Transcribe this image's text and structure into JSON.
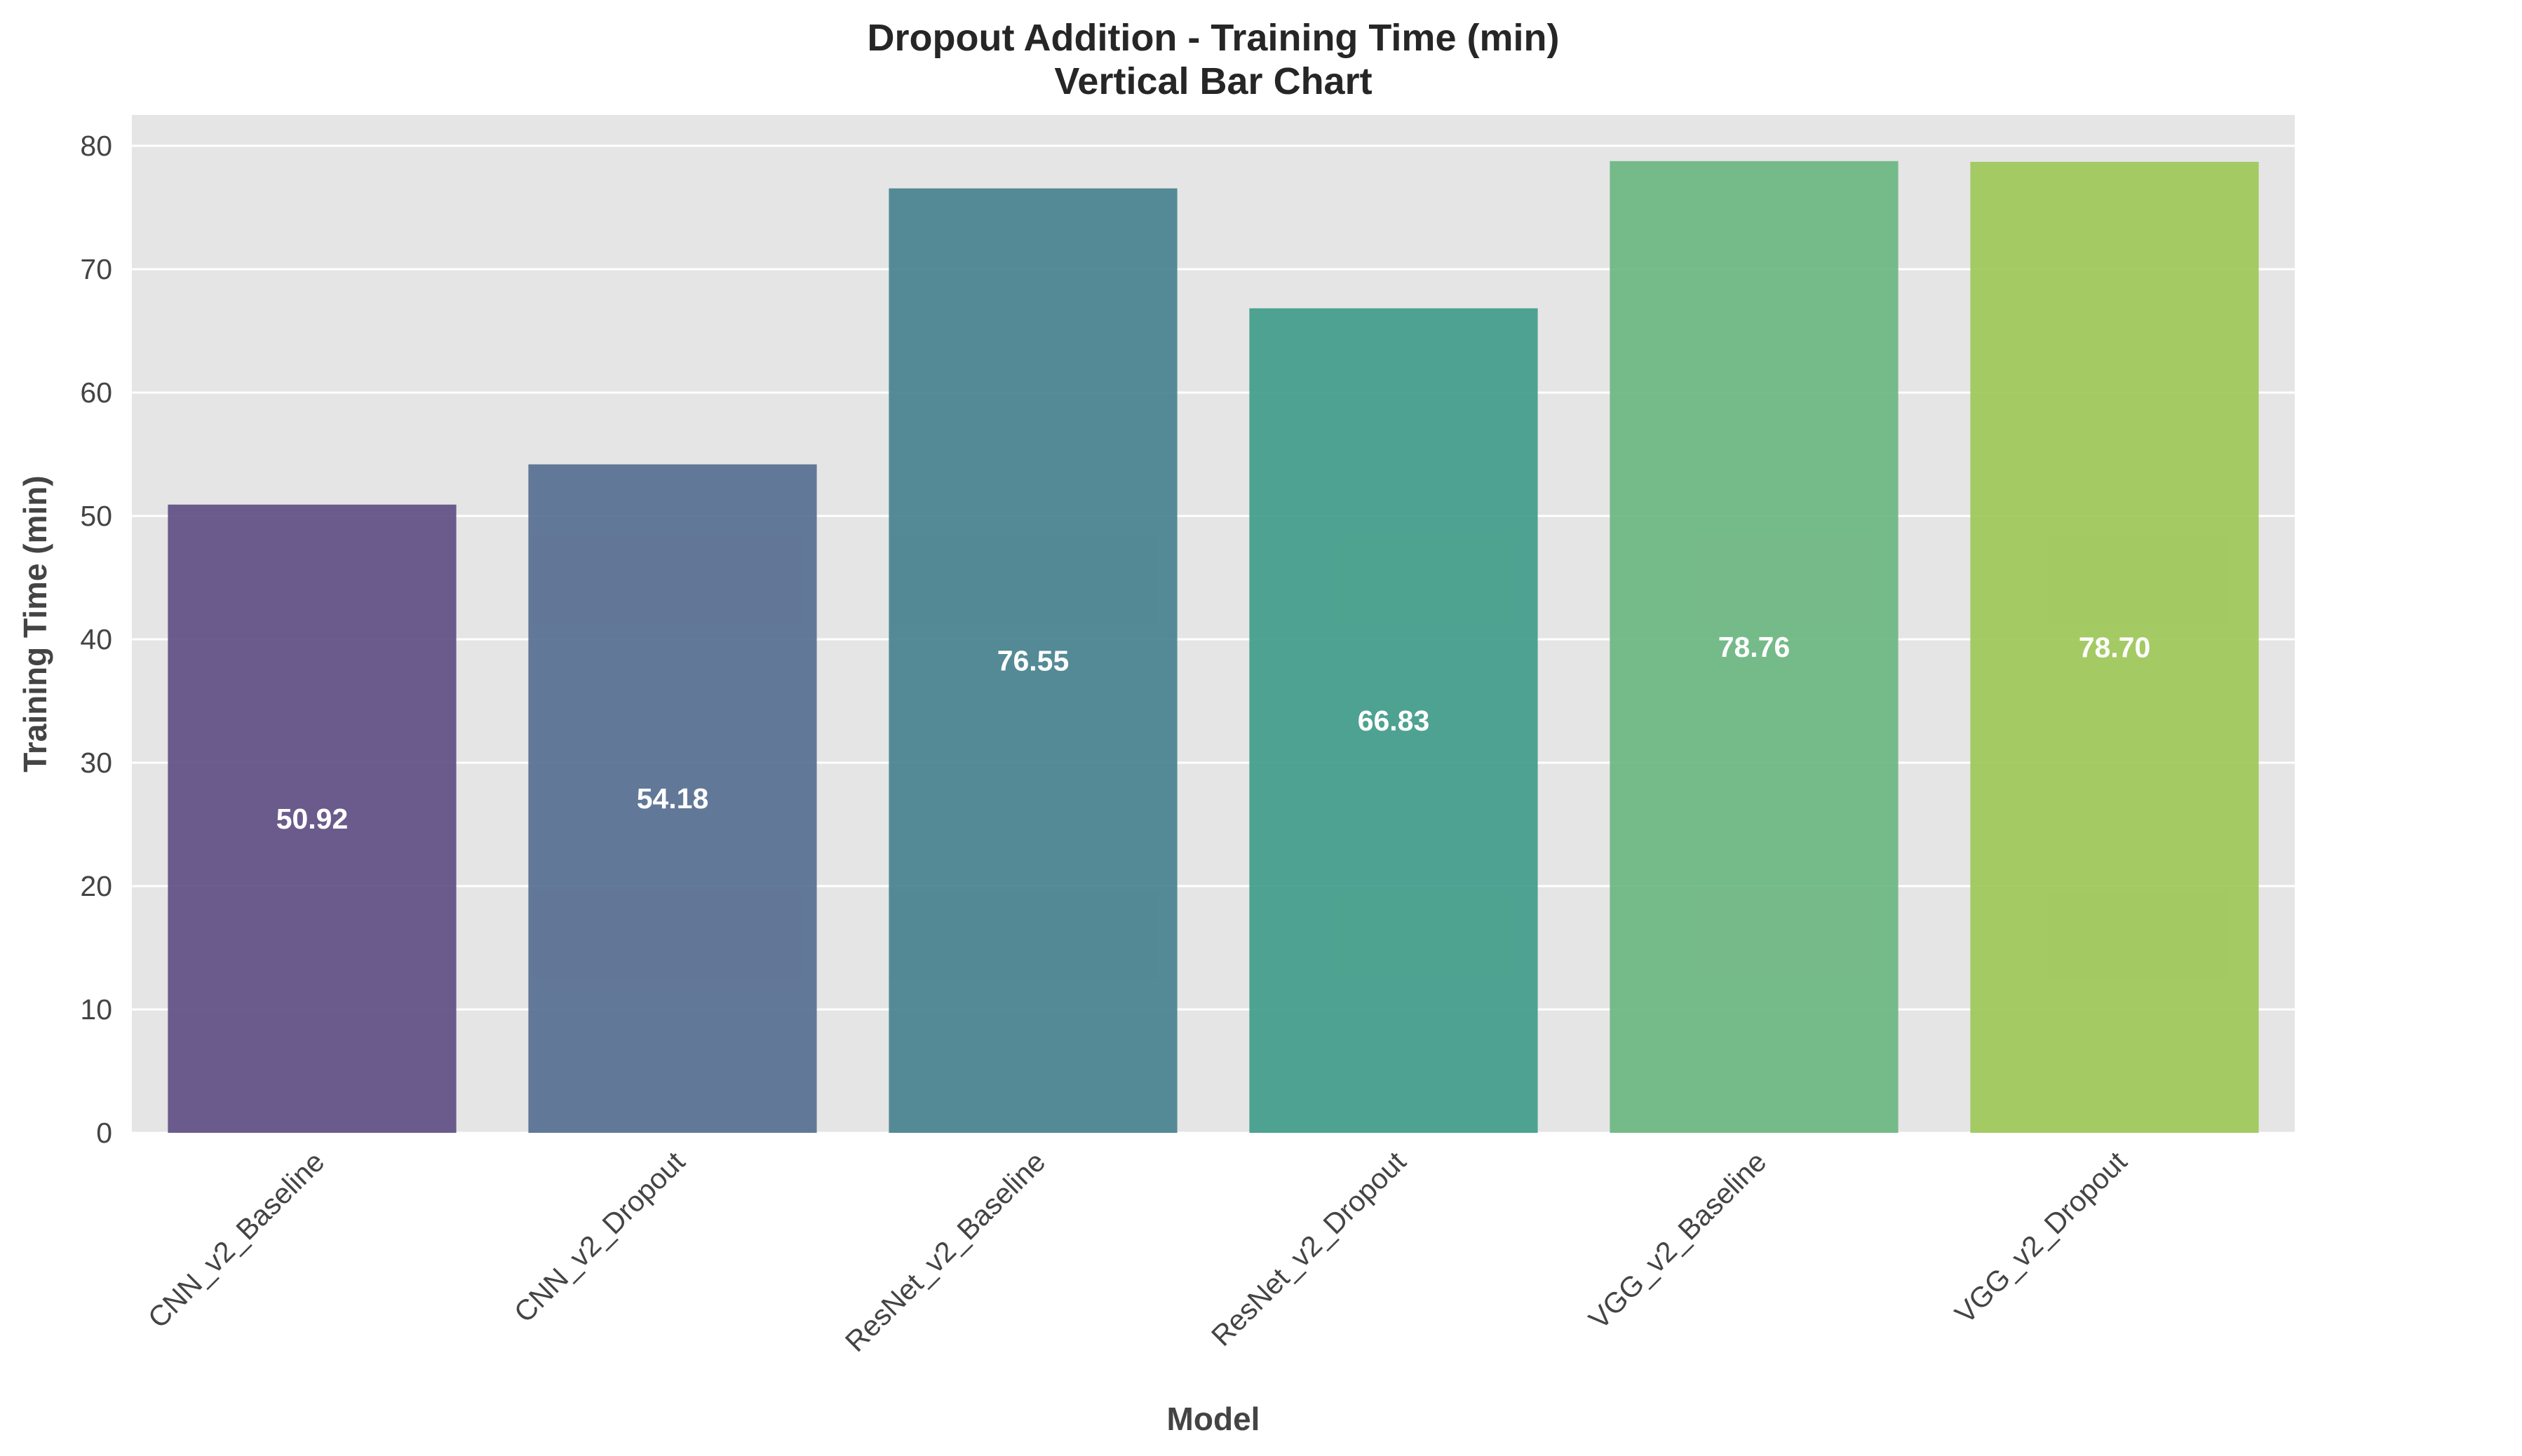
{
  "chart_data": {
    "type": "bar",
    "title": "Dropout Addition - Training Time (min)",
    "subtitle": "Vertical Bar Chart",
    "xlabel": "Model",
    "ylabel": "Training Time (min)",
    "categories": [
      "CNN_v2_Baseline",
      "CNN_v2_Dropout",
      "ResNet_v2_Baseline",
      "ResNet_v2_Dropout",
      "VGG_v2_Baseline",
      "VGG_v2_Dropout"
    ],
    "values": [
      50.92,
      54.18,
      76.55,
      66.83,
      78.76,
      78.7
    ],
    "value_labels": [
      "50.92",
      "54.18",
      "76.55",
      "66.83",
      "78.76",
      "78.70"
    ],
    "colors": [
      "#5d4b82",
      "#536b8f",
      "#437f8c",
      "#3d9a87",
      "#68b57e",
      "#9cc655"
    ],
    "ylim": [
      0,
      82.5
    ],
    "yticks": [
      0,
      10,
      20,
      30,
      40,
      50,
      60,
      70,
      80
    ],
    "grid": true,
    "legend": "none",
    "background_color": "#e5e5e5"
  }
}
